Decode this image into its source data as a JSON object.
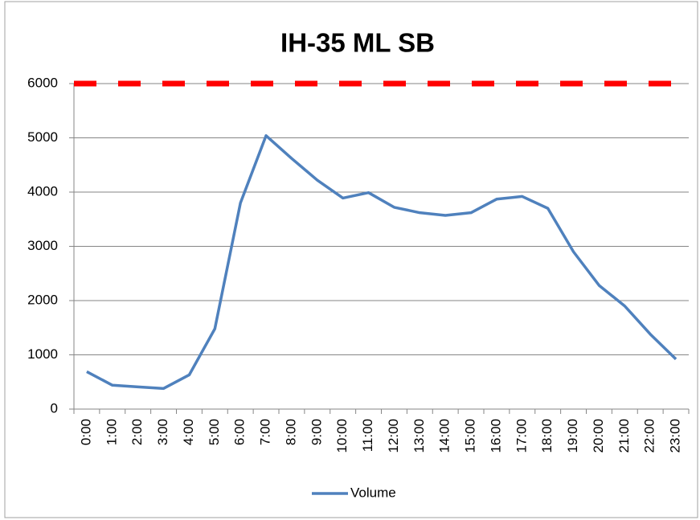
{
  "chart_data": {
    "type": "line",
    "title": "IH-35 ML SB",
    "categories": [
      "0:00",
      "1:00",
      "2:00",
      "3:00",
      "4:00",
      "5:00",
      "6:00",
      "7:00",
      "8:00",
      "9:00",
      "10:00",
      "11:00",
      "12:00",
      "13:00",
      "14:00",
      "15:00",
      "16:00",
      "17:00",
      "18:00",
      "19:00",
      "20:00",
      "21:00",
      "22:00",
      "23:00"
    ],
    "series": [
      {
        "name": "Volume",
        "color": "#4f81bd",
        "values": [
          690,
          440,
          410,
          380,
          630,
          1480,
          3800,
          5040,
          4620,
          4220,
          3890,
          3990,
          3720,
          3620,
          3570,
          3620,
          3870,
          3920,
          3700,
          2900,
          2280,
          1900,
          1380,
          920
        ]
      }
    ],
    "reference_lines": [
      {
        "value": 6000,
        "color": "#ff0000",
        "style": "dashed"
      }
    ],
    "ylim": [
      0,
      6000
    ],
    "yticks": [
      0,
      1000,
      2000,
      3000,
      4000,
      5000,
      6000
    ],
    "grid": true,
    "legend": "bottom"
  }
}
